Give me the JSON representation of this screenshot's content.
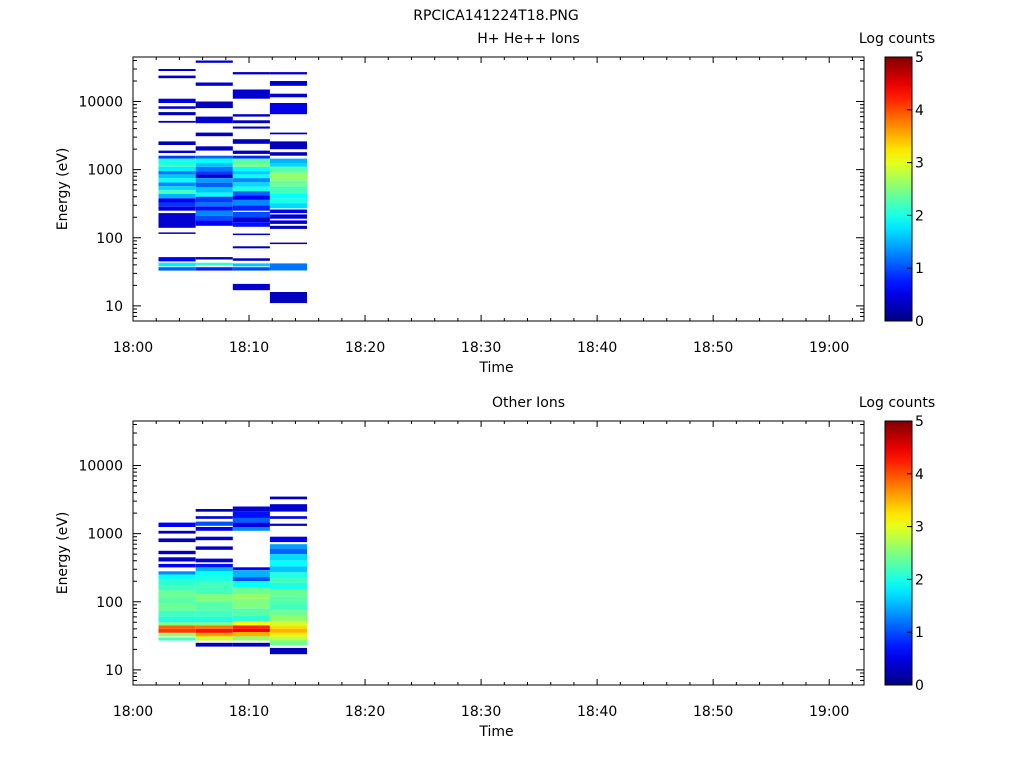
{
  "figure_title": "RPCICA141224T18.PNG",
  "chart_data": [
    {
      "type": "heatmap",
      "title": "H+ He++ Ions",
      "xlabel": "Time",
      "ylabel": "Energy (eV)",
      "x_ticks": [
        "18:00",
        "18:10",
        "18:20",
        "18:30",
        "18:40",
        "18:50",
        "19:00"
      ],
      "x_range_minutes": [
        0,
        63
      ],
      "y_scale": "log",
      "y_ticks": [
        10,
        100,
        1000,
        10000
      ],
      "y_tick_labels": [
        "10",
        "100",
        "1000",
        "10000"
      ],
      "ylim": [
        6,
        45000
      ],
      "colorbar": {
        "label": "Log counts",
        "range": [
          0,
          5
        ],
        "ticks": [
          "0",
          "1",
          "2",
          "3",
          "4",
          "5"
        ],
        "colormap": "jet"
      },
      "columns": [
        {
          "t_start": 2.2,
          "t_end": 5.4,
          "cells": [
            [
              30000,
              28000,
              0.4
            ],
            [
              24000,
              22000,
              0.3
            ],
            [
              11000,
              9500,
              0.5
            ],
            [
              8500,
              7800,
              0.4
            ],
            [
              7000,
              6300,
              0.3
            ],
            [
              5200,
              4900,
              0.3
            ],
            [
              2600,
              2300,
              0.3
            ],
            [
              1900,
              1750,
              0.4
            ],
            [
              1600,
              1450,
              0.9
            ],
            [
              1450,
              1250,
              2.0
            ],
            [
              1250,
              1100,
              2.1
            ],
            [
              1100,
              950,
              1.8
            ],
            [
              950,
              850,
              1.2
            ],
            [
              850,
              750,
              1.6
            ],
            [
              750,
              650,
              1.9
            ],
            [
              650,
              570,
              1.3
            ],
            [
              570,
              500,
              1.7
            ],
            [
              500,
              440,
              2.2
            ],
            [
              440,
              380,
              1.5
            ],
            [
              380,
              330,
              0.6
            ],
            [
              330,
              290,
              0.9
            ],
            [
              290,
              250,
              0.5
            ],
            [
              230,
              140,
              0.4
            ],
            [
              120,
              115,
              0.3
            ],
            [
              52,
              45,
              0.6
            ],
            [
              43,
              38,
              1.8
            ],
            [
              37,
              33,
              1.1
            ]
          ]
        },
        {
          "t_start": 5.4,
          "t_end": 8.6,
          "cells": [
            [
              40000,
              37000,
              0.4
            ],
            [
              19000,
              17000,
              0.4
            ],
            [
              10000,
              8000,
              0.3
            ],
            [
              6000,
              4800,
              0.4
            ],
            [
              3500,
              3100,
              0.3
            ],
            [
              2200,
              1900,
              0.3
            ],
            [
              1600,
              1450,
              1.1
            ],
            [
              1450,
              1250,
              1.9
            ],
            [
              1250,
              1100,
              1.6
            ],
            [
              1100,
              950,
              1.2
            ],
            [
              950,
              850,
              0.9
            ],
            [
              850,
              750,
              0.4
            ],
            [
              750,
              650,
              1.4
            ],
            [
              650,
              550,
              1.1
            ],
            [
              550,
              460,
              1.6
            ],
            [
              460,
              400,
              1.9
            ],
            [
              400,
              330,
              0.9
            ],
            [
              330,
              290,
              1.2
            ],
            [
              290,
              250,
              0.7
            ],
            [
              250,
              210,
              1.3
            ],
            [
              210,
              180,
              1.0
            ],
            [
              180,
              150,
              0.6
            ],
            [
              52,
              48,
              0.3
            ],
            [
              43,
              39,
              2.1
            ],
            [
              37,
              33,
              0.8
            ]
          ]
        },
        {
          "t_start": 8.6,
          "t_end": 11.8,
          "cells": [
            [
              27000,
              25000,
              0.3
            ],
            [
              15000,
              11000,
              0.4
            ],
            [
              6500,
              6000,
              0.3
            ],
            [
              5300,
              4800,
              0.3
            ],
            [
              4300,
              4000,
              0.3
            ],
            [
              2800,
              2400,
              0.3
            ],
            [
              1900,
              1700,
              0.3
            ],
            [
              1600,
              1450,
              0.8
            ],
            [
              1450,
              1250,
              2.3
            ],
            [
              1250,
              1100,
              2.5
            ],
            [
              1100,
              950,
              1.9
            ],
            [
              950,
              850,
              1.6
            ],
            [
              850,
              750,
              1.9
            ],
            [
              750,
              650,
              1.3
            ],
            [
              650,
              560,
              1.7
            ],
            [
              560,
              480,
              2.0
            ],
            [
              480,
              420,
              1.1
            ],
            [
              420,
              360,
              0.6
            ],
            [
              360,
              300,
              1.3
            ],
            [
              300,
              250,
              0.8
            ],
            [
              240,
              200,
              1.0
            ],
            [
              200,
              170,
              0.4
            ],
            [
              170,
              145,
              0.7
            ],
            [
              115,
              110,
              0.3
            ],
            [
              75,
              70,
              0.3
            ],
            [
              50,
              46,
              0.3
            ],
            [
              42,
              38,
              1.6
            ],
            [
              37,
              33,
              1.0
            ],
            [
              21,
              17,
              0.4
            ]
          ]
        },
        {
          "t_start": 11.8,
          "t_end": 15.0,
          "cells": [
            [
              27000,
              25000,
              0.4
            ],
            [
              20000,
              17000,
              0.4
            ],
            [
              13000,
              11500,
              0.4
            ],
            [
              9500,
              6500,
              0.5
            ],
            [
              3500,
              3300,
              0.2
            ],
            [
              2600,
              2000,
              0.3
            ],
            [
              1800,
              1600,
              0.3
            ],
            [
              1450,
              1250,
              1.5
            ],
            [
              1250,
              1100,
              1.7
            ],
            [
              1100,
              900,
              2.3
            ],
            [
              900,
              700,
              2.6
            ],
            [
              700,
              560,
              2.4
            ],
            [
              560,
              450,
              2.2
            ],
            [
              450,
              380,
              1.9
            ],
            [
              380,
              320,
              2.0
            ],
            [
              320,
              270,
              1.7
            ],
            [
              260,
              230,
              0.5
            ],
            [
              220,
              190,
              0.4
            ],
            [
              180,
              160,
              0.4
            ],
            [
              150,
              135,
              0.3
            ],
            [
              85,
              84,
              0.1
            ],
            [
              42,
              33,
              1.2
            ],
            [
              16,
              11,
              0.3
            ]
          ]
        }
      ]
    },
    {
      "type": "heatmap",
      "title": "Other Ions",
      "xlabel": "Time",
      "ylabel": "Energy (eV)",
      "x_ticks": [
        "18:00",
        "18:10",
        "18:20",
        "18:30",
        "18:40",
        "18:50",
        "19:00"
      ],
      "x_range_minutes": [
        0,
        63
      ],
      "y_scale": "log",
      "y_ticks": [
        10,
        100,
        1000,
        10000
      ],
      "y_tick_labels": [
        "10",
        "100",
        "1000",
        "10000"
      ],
      "ylim": [
        6,
        45000
      ],
      "colorbar": {
        "label": "Log counts",
        "range": [
          0,
          5
        ],
        "ticks": [
          "0",
          "1",
          "2",
          "3",
          "4",
          "5"
        ],
        "colormap": "jet"
      },
      "columns": [
        {
          "t_start": 2.2,
          "t_end": 5.4,
          "cells": [
            [
              1450,
              1250,
              0.6
            ],
            [
              1100,
              1000,
              0.3
            ],
            [
              850,
              750,
              0.3
            ],
            [
              560,
              500,
              0.3
            ],
            [
              450,
              390,
              0.4
            ],
            [
              360,
              320,
              0.6
            ],
            [
              280,
              250,
              1.3
            ],
            [
              250,
              210,
              1.9
            ],
            [
              210,
              175,
              2.1
            ],
            [
              175,
              145,
              2.2
            ],
            [
              145,
              115,
              2.4
            ],
            [
              115,
              95,
              2.3
            ],
            [
              95,
              75,
              2.4
            ],
            [
              75,
              60,
              2.2
            ],
            [
              60,
              50,
              2.0
            ],
            [
              50,
              45,
              2.5
            ],
            [
              45,
              40,
              3.9
            ],
            [
              40,
              35,
              4.1
            ],
            [
              35,
              31,
              2.6
            ],
            [
              30,
              27,
              2.2
            ]
          ]
        },
        {
          "t_start": 5.4,
          "t_end": 8.6,
          "cells": [
            [
              2300,
              2100,
              0.3
            ],
            [
              1800,
              1650,
              0.4
            ],
            [
              1500,
              1300,
              1.0
            ],
            [
              1250,
              1100,
              0.6
            ],
            [
              900,
              800,
              0.4
            ],
            [
              650,
              580,
              0.3
            ],
            [
              430,
              380,
              0.4
            ],
            [
              360,
              320,
              0.7
            ],
            [
              320,
              280,
              1.5
            ],
            [
              280,
              240,
              1.9
            ],
            [
              240,
              200,
              2.0
            ],
            [
              200,
              160,
              2.2
            ],
            [
              160,
              130,
              2.2
            ],
            [
              130,
              100,
              2.5
            ],
            [
              100,
              75,
              2.3
            ],
            [
              75,
              60,
              2.2
            ],
            [
              60,
              50,
              2.0
            ],
            [
              50,
              45,
              2.5
            ],
            [
              45,
              40,
              3.8
            ],
            [
              40,
              35,
              4.3
            ],
            [
              35,
              31,
              3.6
            ],
            [
              31,
              27,
              2.9
            ],
            [
              25,
              22,
              0.3
            ]
          ]
        },
        {
          "t_start": 8.6,
          "t_end": 11.8,
          "cells": [
            [
              2500,
              2100,
              0.4
            ],
            [
              2100,
              1700,
              0.7
            ],
            [
              1700,
              1450,
              1.1
            ],
            [
              1450,
              1250,
              0.5
            ],
            [
              1250,
              1100,
              1.3
            ],
            [
              320,
              290,
              0.6
            ],
            [
              290,
              230,
              1.5
            ],
            [
              230,
              200,
              1.0
            ],
            [
              200,
              160,
              1.9
            ],
            [
              160,
              130,
              2.4
            ],
            [
              130,
              110,
              2.6
            ],
            [
              110,
              80,
              2.5
            ],
            [
              80,
              62,
              2.3
            ],
            [
              62,
              52,
              2.1
            ],
            [
              52,
              45,
              3.1
            ],
            [
              45,
              40,
              4.2
            ],
            [
              40,
              36,
              4.4
            ],
            [
              36,
              31,
              3.5
            ],
            [
              31,
              27,
              2.6
            ],
            [
              25,
              22,
              0.3
            ]
          ]
        },
        {
          "t_start": 11.8,
          "t_end": 15.0,
          "cells": [
            [
              3500,
              3200,
              0.3
            ],
            [
              2700,
              2100,
              0.4
            ],
            [
              1800,
              1650,
              0.5
            ],
            [
              1400,
              1300,
              0.4
            ],
            [
              900,
              750,
              0.5
            ],
            [
              700,
              600,
              1.4
            ],
            [
              600,
              500,
              1.1
            ],
            [
              500,
              400,
              1.7
            ],
            [
              400,
              330,
              1.9
            ],
            [
              330,
              270,
              1.6
            ],
            [
              270,
              230,
              2.0
            ],
            [
              230,
              190,
              2.2
            ],
            [
              190,
              150,
              2.0
            ],
            [
              150,
              120,
              2.4
            ],
            [
              120,
              95,
              2.3
            ],
            [
              95,
              75,
              2.2
            ],
            [
              75,
              62,
              2.4
            ],
            [
              62,
              52,
              2.6
            ],
            [
              52,
              45,
              2.9
            ],
            [
              45,
              40,
              3.3
            ],
            [
              40,
              35,
              3.5
            ],
            [
              35,
              31,
              3.2
            ],
            [
              31,
              27,
              2.8
            ],
            [
              27,
              23,
              2.4
            ],
            [
              21,
              17,
              0.3
            ]
          ]
        }
      ]
    }
  ]
}
